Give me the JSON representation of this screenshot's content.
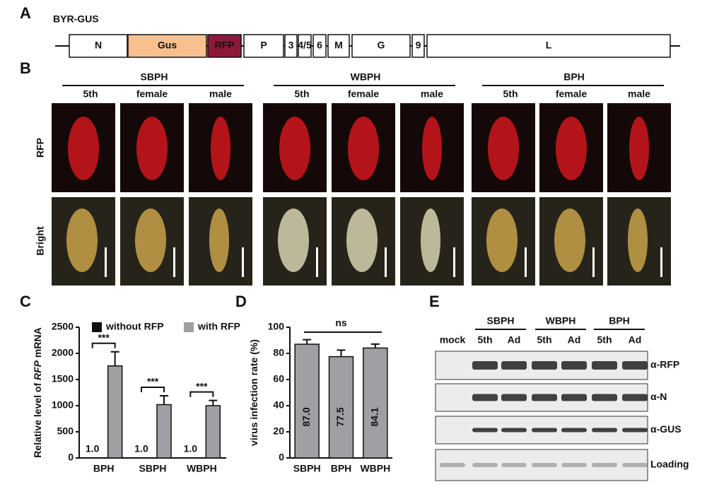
{
  "panels": [
    "A",
    "B",
    "C",
    "D",
    "E"
  ],
  "panel_a": {
    "title": "BYR-GUS",
    "genes": [
      "N",
      "Gus",
      "RFP",
      "P",
      "3",
      "4/5",
      "6",
      "M",
      "G",
      "9",
      "L"
    ]
  },
  "panel_b": {
    "groups": [
      "SBPH",
      "WBPH",
      "BPH"
    ],
    "stages": [
      "5th",
      "female",
      "male"
    ],
    "rows": [
      "RFP",
      "Bright"
    ]
  },
  "panel_e": {
    "groups": [
      "SBPH",
      "WBPH",
      "BPH"
    ],
    "lanes": [
      "mock",
      "5th",
      "Ad",
      "5th",
      "Ad",
      "5th",
      "Ad"
    ],
    "blots": [
      "α-RFP",
      "α-N",
      "α-GUS",
      "Loading"
    ]
  },
  "chart_data": [
    {
      "type": "bar",
      "ylabel": [
        "Relative level of ",
        "RFP",
        " mRNA"
      ],
      "categories": [
        "BPH",
        "SBPH",
        "WBPH"
      ],
      "series": [
        {
          "name": "without RFP",
          "color": "#111111",
          "values": [
            1.0,
            1.0,
            1.0
          ],
          "value_labels": [
            "1.0",
            "1.0",
            "1.0"
          ]
        },
        {
          "name": "with RFP",
          "color": "#a0a0a4",
          "values": [
            1760,
            1020,
            1000
          ],
          "errors": [
            270,
            170,
            100
          ]
        }
      ],
      "annotations": [
        "***",
        "***",
        "***"
      ],
      "ylim": [
        0,
        2500
      ],
      "yticks": [
        0,
        500,
        1000,
        1500,
        2000,
        2500
      ]
    },
    {
      "type": "bar",
      "ylabel": [
        "virus infection rate (%)"
      ],
      "categories": [
        "SBPH",
        "BPH",
        "WBPH"
      ],
      "series": [
        {
          "color": "#a0a0a4",
          "values": [
            87.0,
            77.5,
            84.1
          ],
          "value_labels": [
            "87.0",
            "77.5",
            "84.1"
          ],
          "errors": [
            3.5,
            5,
            3
          ]
        }
      ],
      "annotations": [
        "ns"
      ],
      "ylim": [
        0,
        100
      ],
      "yticks": [
        0,
        20,
        40,
        60,
        80,
        100
      ]
    }
  ]
}
